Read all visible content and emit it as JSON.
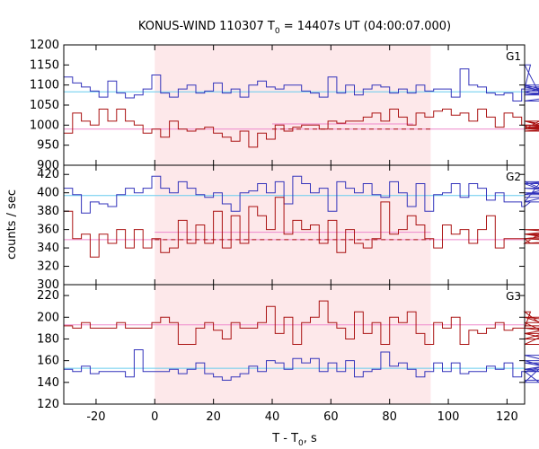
{
  "chart_data": {
    "type": "line",
    "title_main": "KONUS-WIND 110307 T",
    "title_sub": "0",
    "title_rest": " = 14407s UT (04:00:07.000)",
    "ylabel": "counts / sec",
    "xlabel_main": "T - T",
    "xlabel_sub": "0",
    "xlabel_rest": ", s",
    "xlim": [
      -31,
      126
    ],
    "x_ticks": [
      -20,
      0,
      20,
      40,
      60,
      80,
      100,
      120
    ],
    "highlight_interval": [
      0,
      94
    ],
    "bin_width": 3,
    "colors": {
      "upper": "#3333bb",
      "lower": "#aa1111",
      "upper_fit": "#66ccee",
      "lower_fit": "#ee88cc",
      "highlight": "#fde8ea"
    },
    "panels": [
      {
        "name": "G1",
        "ylim": [
          900,
          1200
        ],
        "y_ticks": [
          900,
          950,
          1000,
          1050,
          1100,
          1150,
          1200
        ],
        "upper_fit": 1083,
        "lower_fit": 990,
        "lower_dashed": {
          "x": [
            40,
            94
          ],
          "y": 990
        },
        "lower_solid_fit": {
          "x": [
            40,
            88
          ],
          "y": 1003
        },
        "upper_values": [
          1120,
          1105,
          1095,
          1085,
          1070,
          1110,
          1080,
          1068,
          1075,
          1090,
          1125,
          1080,
          1070,
          1090,
          1100,
          1080,
          1085,
          1105,
          1080,
          1090,
          1070,
          1100,
          1110,
          1095,
          1090,
          1100,
          1100,
          1085,
          1080,
          1070,
          1120,
          1080,
          1100,
          1075,
          1090,
          1100,
          1095,
          1080,
          1090,
          1080,
          1100,
          1085,
          1090,
          1090,
          1070,
          1140,
          1100,
          1095,
          1080,
          1075,
          1080,
          1060,
          1090,
          1150,
          1080,
          1100,
          1080,
          1075,
          1085,
          1085,
          1095,
          1060,
          1090
        ],
        "lower_values": [
          980,
          1030,
          1010,
          1000,
          1040,
          1010,
          1040,
          1010,
          1000,
          980,
          990,
          970,
          1010,
          990,
          985,
          990,
          995,
          980,
          970,
          960,
          985,
          945,
          980,
          965,
          1000,
          985,
          995,
          1000,
          1000,
          990,
          1010,
          1005,
          1010,
          1010,
          1020,
          1030,
          1010,
          1040,
          1020,
          1000,
          1030,
          1020,
          1035,
          1040,
          1025,
          1030,
          1010,
          1040,
          1020,
          995,
          1030,
          1020,
          1000,
          990,
          1010,
          995,
          990,
          1010,
          990,
          1000,
          985,
          1000,
          990
        ]
      },
      {
        "name": "G2",
        "ylim": [
          300,
          430
        ],
        "y_ticks": [
          300,
          320,
          340,
          360,
          380,
          400,
          420
        ],
        "upper_fit": 397,
        "lower_fit": 349,
        "lower_dashed": {
          "x": [
            0,
            94
          ],
          "y": 349
        },
        "lower_solid_fit": {
          "x": [
            0,
            94
          ],
          "y": 357
        },
        "upper_values": [
          405,
          398,
          378,
          390,
          388,
          385,
          398,
          405,
          400,
          405,
          418,
          405,
          400,
          412,
          405,
          398,
          395,
          400,
          388,
          380,
          400,
          402,
          410,
          400,
          412,
          388,
          418,
          410,
          400,
          405,
          380,
          412,
          405,
          400,
          410,
          398,
          395,
          412,
          400,
          385,
          410,
          380,
          398,
          400,
          410,
          395,
          410,
          405,
          392,
          400,
          390,
          390,
          385,
          390,
          410,
          412,
          398,
          410,
          390,
          405,
          400,
          395,
          395
        ],
        "lower_values": [
          380,
          350,
          355,
          330,
          355,
          345,
          360,
          340,
          360,
          340,
          350,
          335,
          340,
          370,
          345,
          365,
          345,
          380,
          340,
          375,
          345,
          385,
          375,
          360,
          395,
          355,
          370,
          360,
          365,
          345,
          370,
          335,
          360,
          345,
          340,
          350,
          390,
          355,
          360,
          375,
          365,
          350,
          340,
          365,
          355,
          360,
          345,
          360,
          375,
          340,
          350,
          350,
          350,
          345,
          355,
          355,
          350,
          355,
          360,
          355,
          350,
          345,
          350
        ]
      },
      {
        "name": "G3",
        "ylim": [
          120,
          230
        ],
        "y_ticks": [
          120,
          140,
          160,
          180,
          200,
          220
        ],
        "upper_fit": 153,
        "lower_fit": 193,
        "upper_values": [
          152,
          150,
          155,
          148,
          150,
          150,
          150,
          145,
          170,
          150,
          150,
          150,
          152,
          148,
          152,
          158,
          148,
          145,
          142,
          145,
          148,
          155,
          150,
          160,
          158,
          152,
          162,
          158,
          162,
          150,
          158,
          150,
          160,
          145,
          150,
          152,
          168,
          155,
          158,
          152,
          145,
          150,
          158,
          150,
          158,
          148,
          150,
          150,
          155,
          152,
          158,
          145,
          150,
          150,
          140,
          160,
          152,
          158,
          150,
          165,
          150,
          152,
          142
        ],
        "lower_values": [
          192,
          190,
          195,
          190,
          190,
          190,
          195,
          190,
          190,
          190,
          195,
          200,
          195,
          175,
          175,
          190,
          195,
          188,
          180,
          195,
          190,
          190,
          195,
          210,
          185,
          200,
          175,
          195,
          200,
          215,
          195,
          190,
          180,
          205,
          185,
          195,
          175,
          200,
          195,
          205,
          185,
          175,
          195,
          190,
          200,
          175,
          188,
          185,
          190,
          195,
          188,
          190,
          190,
          205,
          195,
          185,
          190,
          185,
          175,
          200,
          180,
          200,
          192
        ]
      }
    ]
  }
}
